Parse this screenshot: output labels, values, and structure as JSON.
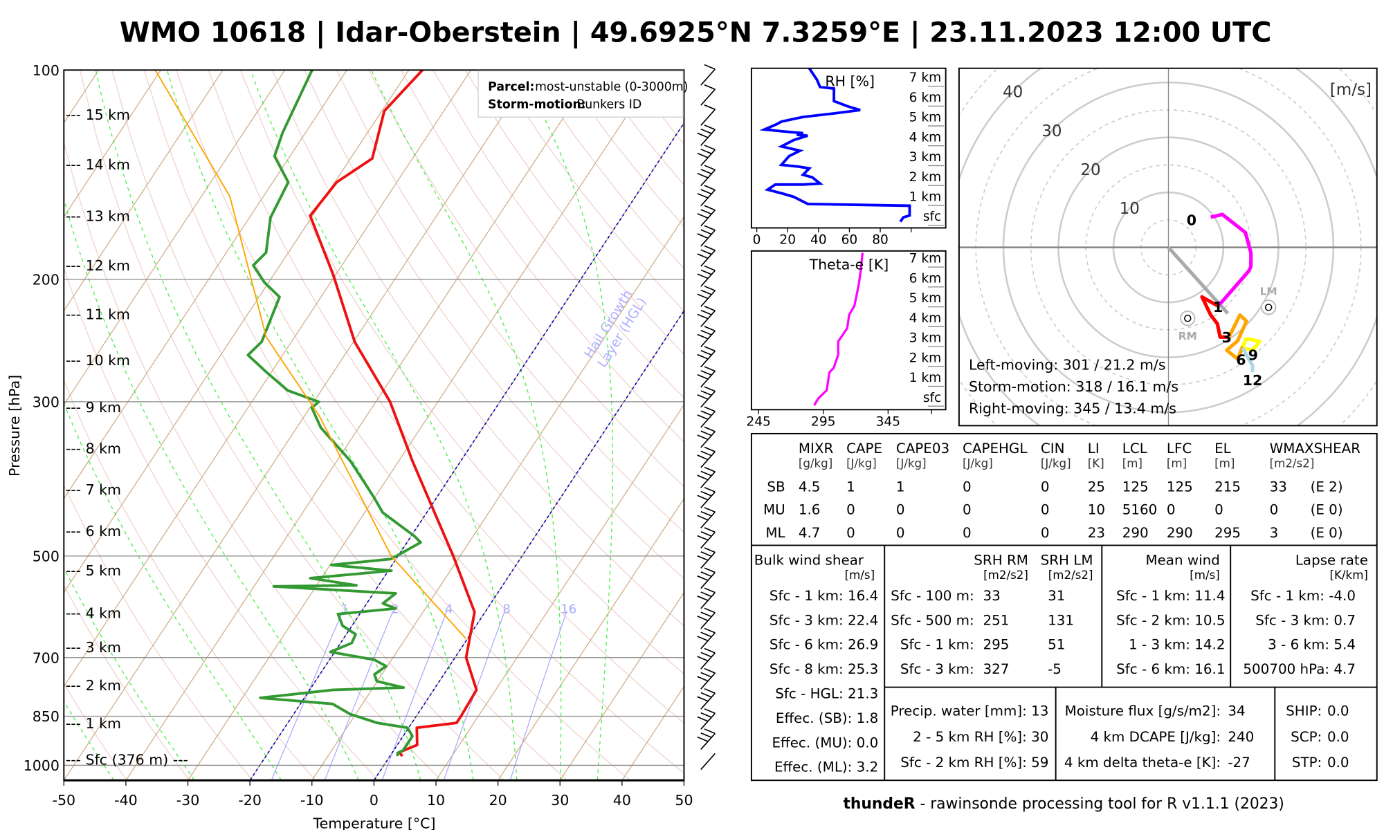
{
  "title": "WMO 10618 | Idar-Oberstein | 49.6925°N 7.3259°E | 23.11.2023 12:00 UTC",
  "legend": {
    "parcel_label": "Parcel:",
    "parcel_value": "most-unstable (0-3000m)",
    "storm_label": "Storm-motion:",
    "storm_value": "Bunkers ID"
  },
  "hgl_label": [
    "Hail Growth",
    "Layer (HGL)"
  ],
  "footer": {
    "bold": "thundeR",
    "rest": " - rawinsonde processing tool for R v1.1.1 (2023)"
  },
  "chart_data": [
    {
      "type": "line",
      "name": "skew-T log-P diagram",
      "xlabel": "Temperature [°C]",
      "ylabel": "Pressure [hPa]",
      "xlim": [
        -50,
        50
      ],
      "ylim": [
        1050,
        100
      ],
      "x_ticks": [
        "-50",
        "-40",
        "-30",
        "-20",
        "-10",
        "0",
        "10",
        "20",
        "30",
        "40",
        "50"
      ],
      "y_ticks": [
        {
          "p": 100,
          "label": "100"
        },
        {
          "p": 200,
          "label": "200"
        },
        {
          "p": 300,
          "label": "300"
        },
        {
          "p": 500,
          "label": "500"
        },
        {
          "p": 700,
          "label": "700"
        },
        {
          "p": 850,
          "label": "850"
        },
        {
          "p": 1000,
          "label": "1000"
        }
      ],
      "height_labels": [
        {
          "p": 115.8,
          "label": "--- 15 km"
        },
        {
          "p": 136.6,
          "label": "--- 14 km"
        },
        {
          "p": 161.9,
          "label": "--- 13 km"
        },
        {
          "p": 190.7,
          "label": "--- 12 km"
        },
        {
          "p": 224.2,
          "label": "--- 11 km"
        },
        {
          "p": 261.1,
          "label": "--- 10 km"
        },
        {
          "p": 305,
          "label": "--- 9 km"
        },
        {
          "p": 349.6,
          "label": "--- 8 km"
        },
        {
          "p": 401,
          "label": "--- 7 km"
        },
        {
          "p": 460,
          "label": "--- 6 km"
        },
        {
          "p": 524,
          "label": "--- 5 km"
        },
        {
          "p": 603,
          "label": "--- 4 km"
        },
        {
          "p": 676,
          "label": "--- 3 km"
        },
        {
          "p": 766,
          "label": "--- 2 km"
        },
        {
          "p": 869,
          "label": "--- 1 km"
        },
        {
          "p": 980,
          "label": "--- Sfc (376 m) ---"
        }
      ],
      "mixing_ratio_lines": [
        "1",
        "2",
        "4",
        "8",
        "16"
      ],
      "blue_dashed_isotherms": [
        -20,
        0
      ],
      "series": [
        {
          "name": "Temperature",
          "color": "#ee1111",
          "points": [
            [
              100,
              -67.8
            ],
            [
              114.5,
              -69.6
            ],
            [
              134,
              -66.5
            ],
            [
              145,
              -69.7
            ],
            [
              162,
              -70.4
            ],
            [
              197,
              -60.4
            ],
            [
              246,
              -49.8
            ],
            [
              300,
              -37.7
            ],
            [
              365,
              -27.8
            ],
            [
              435,
              -18.5
            ],
            [
              500,
              -11.1
            ],
            [
              602,
              -1.7
            ],
            [
              700,
              1.8
            ],
            [
              779,
              6.9
            ],
            [
              850,
              7.2
            ],
            [
              869,
              7.2
            ],
            [
              883,
              1.3
            ],
            [
              935,
              3.2
            ],
            [
              958,
              1.1
            ],
            [
              970,
              2.0
            ]
          ]
        },
        {
          "name": "Dewpoint",
          "color": "#339933",
          "points": [
            [
              100,
              -85.6
            ],
            [
              123,
              -83.7
            ],
            [
              133,
              -82.5
            ],
            [
              145,
              -77.5
            ],
            [
              163,
              -76.6
            ],
            [
              183,
              -73.6
            ],
            [
              191,
              -74.3
            ],
            [
              202,
              -70.7
            ],
            [
              212,
              -66.7
            ],
            [
              246,
              -64.8
            ],
            [
              257,
              -65.6
            ],
            [
              272,
              -60.8
            ],
            [
              289,
              -55.4
            ],
            [
              300,
              -49.2
            ],
            [
              306,
              -49.7
            ],
            [
              327,
              -46.1
            ],
            [
              365,
              -37.8
            ],
            [
              410,
              -30.4
            ],
            [
              433,
              -27.1
            ],
            [
              468,
              -19.5
            ],
            [
              478,
              -17.8
            ],
            [
              505,
              -20.8
            ],
            [
              515,
              -29.8
            ],
            [
              525,
              -19.5
            ],
            [
              538,
              -31.8
            ],
            [
              551,
              -23.6
            ],
            [
              553,
              -36.8
            ],
            [
              566,
              -16.4
            ],
            [
              585,
              -17.4
            ],
            [
              595,
              -14.8
            ],
            [
              606,
              -23.5
            ],
            [
              630,
              -21.5
            ],
            [
              648,
              -18.5
            ],
            [
              667,
              -18.2
            ],
            [
              687,
              -20.7
            ],
            [
              705,
              -12.8
            ],
            [
              720,
              -10.2
            ],
            [
              740,
              -11.2
            ],
            [
              757,
              -10.1
            ],
            [
              773,
              -5.1
            ],
            [
              779,
              -16.2
            ],
            [
              800,
              -27.1
            ],
            [
              816,
              -14.8
            ],
            [
              844,
              -10.9
            ],
            [
              869,
              -5.6
            ],
            [
              883,
              -0.2
            ],
            [
              908,
              1.5
            ],
            [
              952,
              1.5
            ],
            [
              960,
              0.9
            ],
            [
              970,
              1.2
            ]
          ]
        },
        {
          "name": "Parcel (most-unstable)",
          "color": "#ffa500",
          "points": [
            [
              100,
              -110.9
            ],
            [
              152,
              -85.4
            ],
            [
              242,
              -64.6
            ],
            [
              315,
              -47.5
            ],
            [
              500,
              -21.1
            ],
            [
              657,
              -0.3
            ]
          ]
        }
      ]
    },
    {
      "type": "line",
      "name": "RH profile",
      "title": "RH [%]",
      "x_ticks": [
        "0",
        "20",
        "40",
        "60",
        "80"
      ],
      "xlim": [
        0,
        100
      ],
      "height_labels": [
        "sfc",
        "1 km",
        "2 km",
        "3 km",
        "4 km",
        "5 km",
        "6 km",
        "7 km"
      ],
      "color": "#0000ff",
      "points_height_km_rh": [
        [
          0.18,
          93
        ],
        [
          0.4,
          95
        ],
        [
          0.49,
          99
        ],
        [
          0.98,
          99
        ],
        [
          1.07,
          33
        ],
        [
          1.43,
          24
        ],
        [
          1.61,
          16
        ],
        [
          1.79,
          7
        ],
        [
          2.05,
          12
        ],
        [
          2.05,
          30
        ],
        [
          2.1,
          41
        ],
        [
          2.41,
          36
        ],
        [
          2.54,
          30
        ],
        [
          2.86,
          34
        ],
        [
          2.95,
          27
        ],
        [
          3.04,
          16
        ],
        [
          3.48,
          21
        ],
        [
          3.75,
          28
        ],
        [
          3.97,
          16
        ],
        [
          4.29,
          24
        ],
        [
          4.51,
          33
        ],
        [
          4.55,
          26
        ],
        [
          4.64,
          30
        ],
        [
          4.73,
          16
        ],
        [
          4.82,
          5
        ],
        [
          5.09,
          13
        ],
        [
          5.22,
          16
        ],
        [
          5.45,
          30
        ],
        [
          5.63,
          50
        ],
        [
          5.8,
          67
        ],
        [
          5.98,
          59
        ],
        [
          6.25,
          50
        ],
        [
          6.88,
          50
        ],
        [
          6.96,
          41
        ],
        [
          7.32,
          39
        ],
        [
          7.9,
          34
        ]
      ]
    },
    {
      "type": "line",
      "name": "Theta-e profile",
      "title": "Theta-e [K]",
      "x_ticks": [
        "245",
        "295",
        "345"
      ],
      "height_labels": [
        "sfc",
        "1 km",
        "2 km",
        "3 km",
        "4 km",
        "5 km",
        "6 km",
        "7 km"
      ],
      "color": "#ff00ff",
      "points_height_km_thetae": [
        [
          0.04,
          288
        ],
        [
          0.36,
          290.8
        ],
        [
          0.8,
          297.6
        ],
        [
          1.7,
          299.7
        ],
        [
          1.92,
          303
        ],
        [
          2.59,
          306.5
        ],
        [
          3.26,
          306.5
        ],
        [
          3.93,
          313.5
        ],
        [
          4.6,
          314.9
        ],
        [
          5.04,
          319
        ],
        [
          5.49,
          320.4
        ],
        [
          6.16,
          322.5
        ],
        [
          6.83,
          323.9
        ],
        [
          7.72,
          325.3
        ]
      ]
    },
    {
      "type": "scatter",
      "name": "Hodograph",
      "unit_label": "[m/s]",
      "ring_labels": [
        "10",
        "20",
        "30",
        "40"
      ],
      "segments": [
        {
          "range": "0-1 km",
          "color": "#ff00ff",
          "points": [
            [
              7.7,
              5.5
            ],
            [
              9.8,
              6
            ],
            [
              14,
              2.7
            ],
            [
              15,
              -1
            ],
            [
              15,
              -3.4
            ],
            [
              14.7,
              -4.2
            ],
            [
              12.6,
              -6.6
            ],
            [
              9.8,
              -9.8
            ],
            [
              8.9,
              -10.6
            ]
          ]
        },
        {
          "range": "1-3 km",
          "color": "#ff0000",
          "points": [
            [
              8.9,
              -10.6
            ],
            [
              6.1,
              -9
            ],
            [
              7.7,
              -12.3
            ],
            [
              8.9,
              -13.9
            ],
            [
              9.4,
              -16.3
            ],
            [
              11,
              -16.3
            ]
          ]
        },
        {
          "range": "3-6 km",
          "color": "#ffa500",
          "points": [
            [
              11,
              -16.3
            ],
            [
              13,
              -12.3
            ],
            [
              14.2,
              -13.4
            ],
            [
              12.6,
              -17
            ],
            [
              10.6,
              -18.7
            ],
            [
              12.6,
              -20.3
            ],
            [
              13.5,
              -18
            ]
          ]
        },
        {
          "range": "6-9 km",
          "color": "#ffff00",
          "points": [
            [
              13.5,
              -18
            ],
            [
              14.2,
              -16.6
            ],
            [
              16.6,
              -17.1
            ],
            [
              15.3,
              -18.7
            ],
            [
              13.5,
              -18.3
            ]
          ]
        },
        {
          "range": "9-12 km",
          "color": "#add8e6",
          "points": [
            [
              13.5,
              -18.3
            ],
            [
              15.3,
              -21.5
            ],
            [
              15.3,
              -22.7
            ]
          ]
        }
      ],
      "km_labels": [
        {
          "label": "0",
          "u": 4.2,
          "v": 5
        },
        {
          "label": "1",
          "u": 9,
          "v": -10.8
        },
        {
          "label": "3",
          "u": 10.6,
          "v": -16.3
        },
        {
          "label": "6",
          "u": 13.2,
          "v": -20.4
        },
        {
          "label": "9",
          "u": 15.4,
          "v": -19.5
        },
        {
          "label": "12",
          "u": 15.3,
          "v": -24.1
        }
      ],
      "mean_wind": {
        "u": 10.8,
        "v": -12
      },
      "markers": [
        {
          "label": "RM",
          "u": 3.5,
          "v": -12.9
        },
        {
          "label": "LM",
          "u": 18.2,
          "v": -10.9
        }
      ],
      "motion_text": [
        "Left-moving: 301 / 21.2 m/s",
        "Storm-motion: 318 / 16.1 m/s",
        "Right-moving: 345 / 13.4 m/s"
      ]
    }
  ],
  "table": {
    "columns": [
      {
        "name": "MIXR",
        "unit": "[g/kg]"
      },
      {
        "name": "CAPE",
        "unit": "[J/kg]"
      },
      {
        "name": "CAPE03",
        "unit": "[J/kg]"
      },
      {
        "name": "CAPEHGL",
        "unit": "[J/kg]"
      },
      {
        "name": "CIN",
        "unit": "[J/kg]"
      },
      {
        "name": "LI",
        "unit": "[K]"
      },
      {
        "name": "LCL",
        "unit": "[m]"
      },
      {
        "name": "LFC",
        "unit": "[m]"
      },
      {
        "name": "EL",
        "unit": "[m]"
      },
      {
        "name": "WMAXSHEAR",
        "unit": "[m2/s2]"
      }
    ],
    "rows": [
      {
        "label": "SB",
        "values": [
          "4.5",
          "1",
          "1",
          "0",
          "0",
          "25",
          "125",
          "125",
          "215",
          "33",
          "(E 2)"
        ]
      },
      {
        "label": "MU",
        "values": [
          "1.6",
          "0",
          "0",
          "0",
          "0",
          "10",
          "5160",
          "0",
          "0",
          "0",
          "(E 0)"
        ]
      },
      {
        "label": "ML",
        "values": [
          "4.7",
          "0",
          "0",
          "0",
          "0",
          "23",
          "290",
          "290",
          "295",
          "3",
          "(E 0)"
        ]
      }
    ],
    "bulk_shear": {
      "title": "Bulk wind shear",
      "unit": "[m/s]",
      "items": [
        "Sfc - 1 km: 16.4",
        "Sfc - 3 km: 22.4",
        "Sfc - 6 km: 26.9",
        "Sfc - 8 km: 25.3",
        "Sfc - HGL: 21.3",
        "Effec. (SB): 1.8",
        "Effec. (MU): 0.0",
        "Effec. (ML): 3.2"
      ]
    },
    "srh": {
      "rm_title": "SRH RM",
      "lm_title": "SRH LM",
      "rm_unit": "[m2/s2]",
      "lm_unit": "[m2/s2]",
      "items": [
        {
          "label": "Sfc - 100 m:",
          "rm": "33",
          "lm": "31"
        },
        {
          "label": "Sfc - 500 m:",
          "rm": "251",
          "lm": "131"
        },
        {
          "label": "Sfc - 1 km:",
          "rm": "295",
          "lm": "51"
        },
        {
          "label": "Sfc - 3 km:",
          "rm": "327",
          "lm": "-5"
        }
      ]
    },
    "mean_wind": {
      "title": "Mean wind",
      "unit": "[m/s]",
      "items": [
        "Sfc - 1 km: 11.4",
        "Sfc - 2 km: 10.5",
        "1 - 3 km: 14.2",
        "Sfc - 6 km: 16.1"
      ]
    },
    "lapse_rate": {
      "title": "Lapse rate",
      "unit": "[K/km]",
      "items": [
        "Sfc - 1 km: -4.0",
        "Sfc - 3 km: 0.7",
        "3 - 6 km: 5.4",
        "500700 hPa: 4.7"
      ]
    },
    "moisture": [
      "Precip. water [mm]: 13",
      "2 - 5 km RH [%]: 30",
      "Sfc - 2 km RH [%]: 59"
    ],
    "flux": [
      {
        "label": "Moisture flux [g/s/m2]:",
        "value": "34"
      },
      {
        "label": "4 km DCAPE [J/kg]:",
        "value": "240"
      },
      {
        "label": "4 km delta theta-e [K]:",
        "value": "-27"
      }
    ],
    "composite": [
      {
        "label": "SHIP:",
        "value": "0.0"
      },
      {
        "label": "SCP:",
        "value": "0.0"
      },
      {
        "label": "STP:",
        "value": "0.0"
      }
    ]
  }
}
